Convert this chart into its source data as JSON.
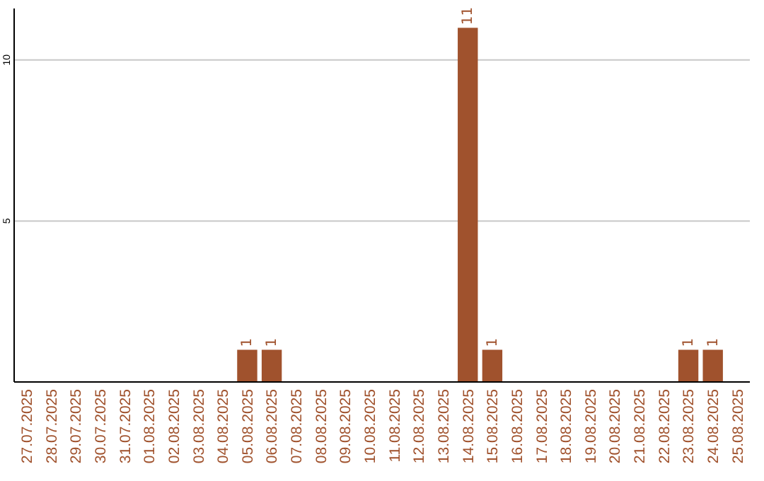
{
  "chart_data": {
    "type": "bar",
    "categories": [
      "27.07.2025",
      "28.07.2025",
      "29.07.2025",
      "30.07.2025",
      "31.07.2025",
      "01.08.2025",
      "02.08.2025",
      "03.08.2025",
      "04.08.2025",
      "05.08.2025",
      "06.08.2025",
      "07.08.2025",
      "08.08.2025",
      "09.08.2025",
      "10.08.2025",
      "11.08.2025",
      "12.08.2025",
      "13.08.2025",
      "14.08.2025",
      "15.08.2025",
      "16.08.2025",
      "17.08.2025",
      "18.08.2025",
      "19.08.2025",
      "20.08.2025",
      "21.08.2025",
      "22.08.2025",
      "23.08.2025",
      "24.08.2025",
      "25.08.2025"
    ],
    "values": [
      0,
      0,
      0,
      0,
      0,
      0,
      0,
      0,
      0,
      1,
      1,
      0,
      0,
      0,
      0,
      0,
      0,
      0,
      11,
      1,
      0,
      0,
      0,
      0,
      0,
      0,
      0,
      1,
      1,
      0
    ],
    "value_labels": [
      null,
      null,
      null,
      null,
      null,
      null,
      null,
      null,
      null,
      "1",
      "1",
      null,
      null,
      null,
      null,
      null,
      null,
      null,
      "11",
      "1",
      null,
      null,
      null,
      null,
      null,
      null,
      null,
      "1",
      "1",
      null
    ],
    "color": "#a0522d",
    "ylim": [
      0,
      11.6
    ],
    "yticks": [
      5,
      10
    ],
    "grid": "y"
  }
}
